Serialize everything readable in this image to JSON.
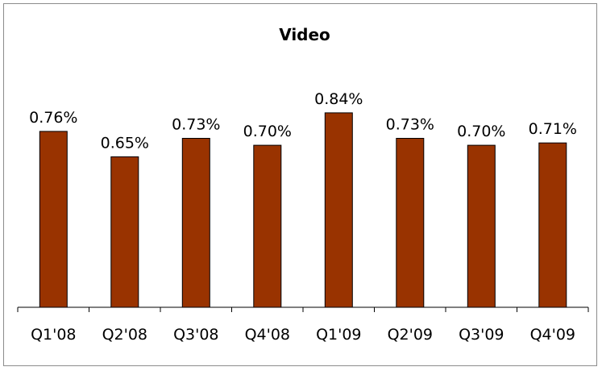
{
  "chart_data": {
    "type": "bar",
    "title": "Video",
    "categories": [
      "Q1'08",
      "Q2'08",
      "Q3'08",
      "Q4'08",
      "Q1'09",
      "Q2'09",
      "Q3'09",
      "Q4'09"
    ],
    "values": [
      0.76,
      0.65,
      0.73,
      0.7,
      0.84,
      0.73,
      0.7,
      0.71
    ],
    "data_labels": [
      "0.76%",
      "0.65%",
      "0.73%",
      "0.70%",
      "0.84%",
      "0.73%",
      "0.70%",
      "0.71%"
    ],
    "ylim": [
      0,
      1.0
    ],
    "bar_color": "#993300",
    "bar_border": "#000000",
    "xlabel": "",
    "ylabel": "",
    "grid": false,
    "legend": "none"
  }
}
